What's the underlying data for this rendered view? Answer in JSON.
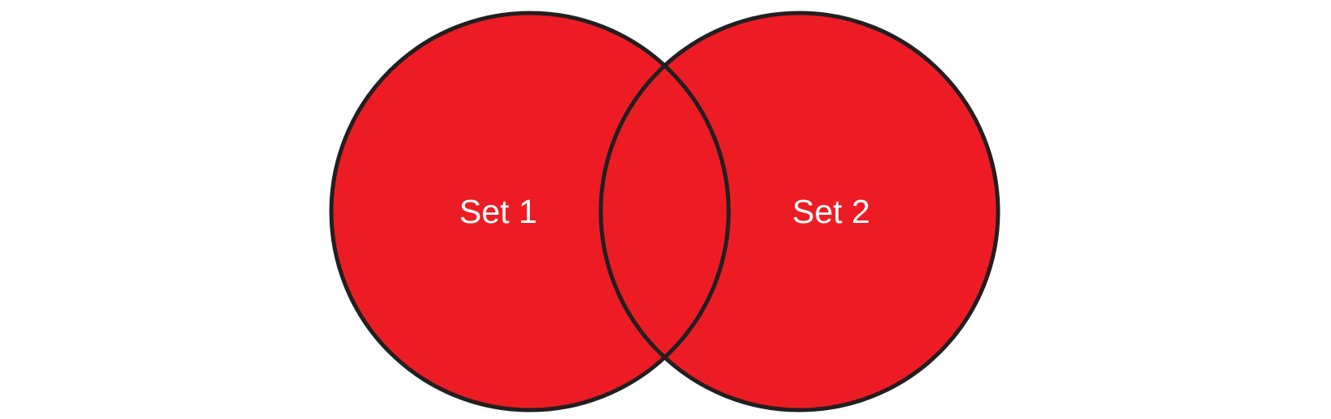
{
  "diagram": {
    "type": "venn",
    "colors": {
      "fill": "#ED1C24",
      "outline": "#231F20",
      "label": "#FFFFFF",
      "background": "#FFFFFF"
    },
    "sets": [
      {
        "label": "Set 1"
      },
      {
        "label": "Set 2"
      }
    ]
  }
}
